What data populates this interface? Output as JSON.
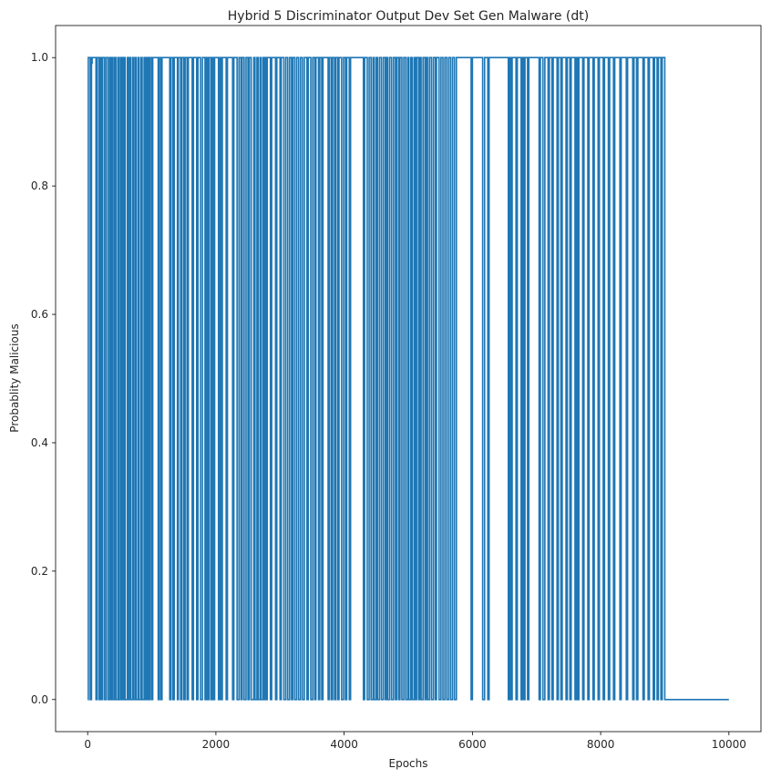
{
  "chart_data": {
    "type": "line",
    "title": "Hybrid 5 Discriminator Output Dev Set Gen Malware (dt)",
    "xlabel": "Epochs",
    "ylabel": "Probablity Malicious",
    "xlim": [
      -500,
      10500
    ],
    "ylim": [
      -0.05,
      1.05
    ],
    "xticks": [
      0,
      2000,
      4000,
      6000,
      8000,
      10000
    ],
    "xtick_labels": [
      "0",
      "2000",
      "4000",
      "6000",
      "8000",
      "10000"
    ],
    "yticks": [
      0.0,
      0.2,
      0.4,
      0.6,
      0.8,
      1.0
    ],
    "ytick_labels": [
      "0.0",
      "0.2",
      "0.4",
      "0.6",
      "0.8",
      "1.0"
    ],
    "grid": false,
    "legend": "none",
    "series": [
      {
        "color": "#1f77b4",
        "description_of_pattern": "binary oscillation between 0 and 1 from epoch 0 to ~9000, then constant 0 until 10000",
        "low_intervals": [
          [
            0,
            10
          ],
          [
            40,
            60
          ],
          [
            130,
            150
          ],
          [
            180,
            195
          ],
          [
            215,
            235
          ],
          [
            265,
            290
          ],
          [
            320,
            345
          ],
          [
            365,
            385
          ],
          [
            395,
            420
          ],
          [
            440,
            470
          ],
          [
            490,
            515
          ],
          [
            535,
            545
          ],
          [
            560,
            575
          ],
          [
            585,
            620
          ],
          [
            640,
            660
          ],
          [
            670,
            700
          ],
          [
            715,
            740
          ],
          [
            760,
            790
          ],
          [
            800,
            830
          ],
          [
            850,
            880
          ],
          [
            900,
            915
          ],
          [
            925,
            940
          ],
          [
            960,
            975
          ],
          [
            1000,
            1015
          ],
          [
            1100,
            1115
          ],
          [
            1140,
            1160
          ],
          [
            1280,
            1300
          ],
          [
            1330,
            1350
          ],
          [
            1400,
            1415
          ],
          [
            1450,
            1470
          ],
          [
            1500,
            1520
          ],
          [
            1550,
            1570
          ],
          [
            1630,
            1650
          ],
          [
            1700,
            1720
          ],
          [
            1760,
            1790
          ],
          [
            1830,
            1850
          ],
          [
            1870,
            1890
          ],
          [
            1920,
            1940
          ],
          [
            1960,
            1980
          ],
          [
            2040,
            2060
          ],
          [
            2080,
            2100
          ],
          [
            2160,
            2180
          ],
          [
            2260,
            2280
          ],
          [
            2330,
            2360
          ],
          [
            2390,
            2410
          ],
          [
            2440,
            2470
          ],
          [
            2500,
            2520
          ],
          [
            2550,
            2590
          ],
          [
            2610,
            2640
          ],
          [
            2660,
            2690
          ],
          [
            2700,
            2730
          ],
          [
            2740,
            2760
          ],
          [
            2780,
            2800
          ],
          [
            2850,
            2870
          ],
          [
            2930,
            2950
          ],
          [
            3000,
            3020
          ],
          [
            3060,
            3090
          ],
          [
            3120,
            3150
          ],
          [
            3180,
            3200
          ],
          [
            3230,
            3260
          ],
          [
            3290,
            3320
          ],
          [
            3350,
            3380
          ],
          [
            3420,
            3440
          ],
          [
            3480,
            3510
          ],
          [
            3540,
            3560
          ],
          [
            3600,
            3620
          ],
          [
            3650,
            3670
          ],
          [
            3750,
            3770
          ],
          [
            3800,
            3820
          ],
          [
            3850,
            3870
          ],
          [
            3900,
            3920
          ],
          [
            3960,
            3990
          ],
          [
            4020,
            4040
          ],
          [
            4080,
            4100
          ],
          [
            4300,
            4320
          ],
          [
            4360,
            4390
          ],
          [
            4420,
            4450
          ],
          [
            4470,
            4500
          ],
          [
            4520,
            4550
          ],
          [
            4580,
            4610
          ],
          [
            4640,
            4660
          ],
          [
            4680,
            4710
          ],
          [
            4740,
            4770
          ],
          [
            4800,
            4820
          ],
          [
            4850,
            4870
          ],
          [
            4900,
            4930
          ],
          [
            4960,
            4990
          ],
          [
            5010,
            5040
          ],
          [
            5060,
            5090
          ],
          [
            5110,
            5130
          ],
          [
            5160,
            5180
          ],
          [
            5200,
            5230
          ],
          [
            5260,
            5280
          ],
          [
            5300,
            5330
          ],
          [
            5360,
            5390
          ],
          [
            5420,
            5440
          ],
          [
            5480,
            5510
          ],
          [
            5540,
            5570
          ],
          [
            5600,
            5630
          ],
          [
            5660,
            5690
          ],
          [
            5720,
            5750
          ],
          [
            5980,
            6000
          ],
          [
            6160,
            6190
          ],
          [
            6240,
            6260
          ],
          [
            6560,
            6580
          ],
          [
            6600,
            6620
          ],
          [
            6680,
            6700
          ],
          [
            6760,
            6780
          ],
          [
            6800,
            6820
          ],
          [
            6860,
            6880
          ],
          [
            7040,
            7060
          ],
          [
            7100,
            7130
          ],
          [
            7180,
            7200
          ],
          [
            7240,
            7260
          ],
          [
            7320,
            7340
          ],
          [
            7380,
            7400
          ],
          [
            7460,
            7480
          ],
          [
            7520,
            7540
          ],
          [
            7600,
            7620
          ],
          [
            7640,
            7660
          ],
          [
            7720,
            7740
          ],
          [
            7800,
            7820
          ],
          [
            7880,
            7900
          ],
          [
            7960,
            7980
          ],
          [
            8040,
            8060
          ],
          [
            8120,
            8140
          ],
          [
            8200,
            8220
          ],
          [
            8300,
            8320
          ],
          [
            8400,
            8420
          ],
          [
            8500,
            8520
          ],
          [
            8560,
            8580
          ],
          [
            8660,
            8680
          ],
          [
            8740,
            8760
          ],
          [
            8820,
            8840
          ],
          [
            8880,
            8900
          ],
          [
            8940,
            8960
          ]
        ],
        "partial_dips": [
          {
            "x": 70,
            "y": 0.99
          },
          {
            "x": 150,
            "y": 0.54
          }
        ],
        "switch_to_zero_epoch": 9000,
        "end_epoch": 10000
      }
    ]
  }
}
